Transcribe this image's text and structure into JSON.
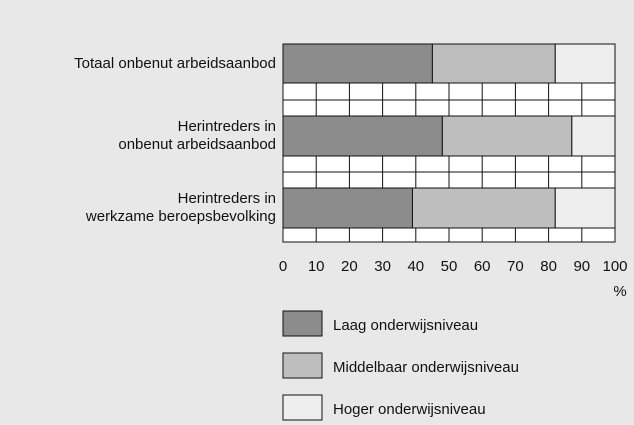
{
  "chart_data": {
    "type": "stacked_barh",
    "categories": [
      "Totaal onbenut arbeidsaanbod",
      "Herintreders in\nonbenut arbeidsaanbod",
      "Herintreders in\nwerkzame beroepsbevolking"
    ],
    "series": [
      {
        "name": "Laag onderwijsniveau",
        "color": "#8c8c8c",
        "values": [
          45,
          48,
          39
        ]
      },
      {
        "name": "Middelbaar onderwijsniveau",
        "color": "#bebebe",
        "values": [
          37,
          39,
          43
        ]
      },
      {
        "name": "Hoger onderwijsniveau",
        "color": "#eeeeee",
        "values": [
          18,
          13,
          18
        ]
      }
    ],
    "xlabel": "%",
    "xlim": [
      0,
      100
    ],
    "xticks": [
      0,
      10,
      20,
      30,
      40,
      50,
      60,
      70,
      80,
      90,
      100
    ],
    "grid": true
  }
}
